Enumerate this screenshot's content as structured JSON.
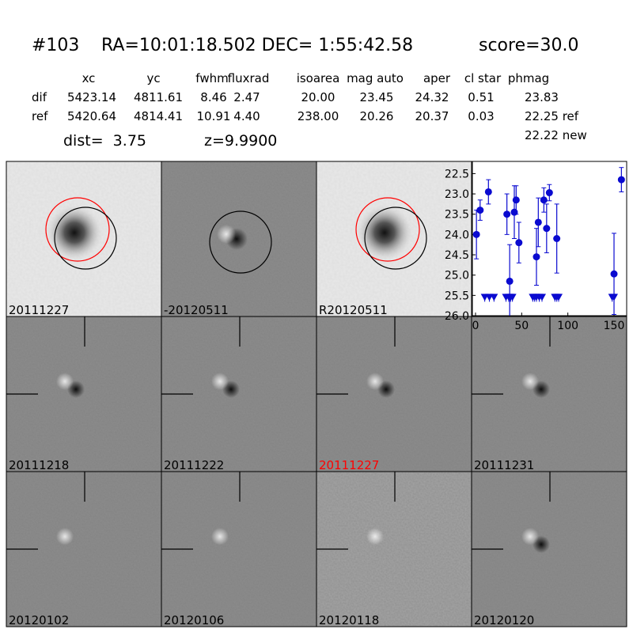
{
  "header": {
    "id": "#103",
    "coords": "RA=10:01:18.502 DEC= 1:55:42.58",
    "score": "score=30.0"
  },
  "table": {
    "columns": [
      "xc",
      "yc",
      "fwhm",
      "fluxrad",
      "isoarea",
      "mag auto",
      "aper",
      "cl star",
      "phmag"
    ],
    "rows": [
      [
        "dif",
        "5423.14",
        "4811.61",
        "8.46",
        "2.47",
        "20.00",
        "23.45",
        "24.32",
        "0.51",
        "23.83"
      ],
      [
        "ref",
        "5420.64",
        "4814.41",
        "10.91",
        "4.40",
        "238.00",
        "20.26",
        "20.37",
        "0.03",
        "22.25 ref"
      ]
    ],
    "extra": "22.22 new"
  },
  "info": {
    "dist": "dist=  3.75",
    "z": "z=9.9900"
  },
  "panels": [
    "20111227",
    "-20120511",
    "R20120511",
    "20111218",
    "20111222",
    "20111227",
    "20111231",
    "20120102",
    "20120106",
    "20120118",
    "20120120"
  ],
  "highlight_color": "#ff0000",
  "chart_data": {
    "type": "errorbar",
    "invert_y": true,
    "xlim": [
      -3.4,
      163.7
    ],
    "xticks": [
      0,
      50,
      100,
      150
    ],
    "ylim": [
      22.2,
      26.0
    ],
    "yticks": [
      22.5,
      {
        "value": 23,
        "label": "23.0"
      },
      23.5,
      {
        "value": 24,
        "label": "24.0"
      },
      24.5,
      {
        "value": 25,
        "label": "25.0"
      },
      25.5,
      {
        "value": 26,
        "label": "26.0"
      }
    ],
    "series": [
      {
        "color": "#0a0ad0",
        "x": [
          1,
          5,
          14,
          34,
          37,
          42,
          44,
          47,
          66,
          68,
          74,
          77,
          80,
          88,
          150,
          158
        ],
        "values": [
          24.0,
          23.4,
          22.95,
          23.5,
          25.15,
          23.45,
          23.15,
          24.2,
          24.55,
          23.7,
          23.15,
          23.85,
          22.97,
          24.1,
          24.97,
          22.65
        ],
        "errors": [
          0.6,
          0.25,
          0.3,
          0.5,
          0.9,
          0.65,
          0.35,
          0.5,
          0.7,
          0.6,
          0.3,
          0.6,
          0.2,
          0.85,
          1.0,
          0.3
        ]
      }
    ],
    "upper_limits": {
      "color": "#0a0ad0",
      "x": [
        10,
        15,
        20,
        33,
        36,
        38,
        40,
        62,
        64,
        66,
        69,
        72,
        86,
        88,
        90,
        148,
        150
      ],
      "values": [
        25.5,
        25.5,
        25.5,
        25.5,
        25.5,
        25.5,
        25.5,
        25.5,
        25.5,
        25.5,
        25.5,
        25.5,
        25.5,
        25.5,
        25.5,
        25.5,
        25.5
      ]
    }
  }
}
